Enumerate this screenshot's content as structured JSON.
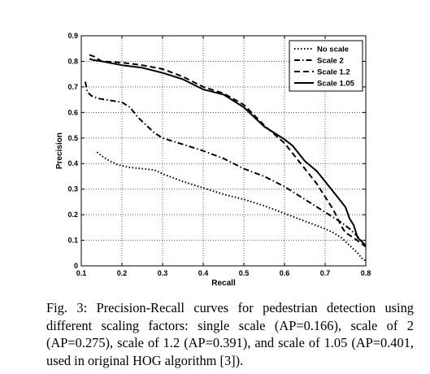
{
  "chart_data": {
    "type": "line",
    "title": "",
    "xlabel": "Recall",
    "ylabel": "Precision",
    "xlim": [
      0.1,
      0.8
    ],
    "ylim": [
      0,
      0.9
    ],
    "xticks": [
      0.1,
      0.2,
      0.3,
      0.4,
      0.5,
      0.6,
      0.7,
      0.8
    ],
    "yticks": [
      0,
      0.1,
      0.2,
      0.3,
      0.4,
      0.5,
      0.6,
      0.7,
      0.8,
      0.9
    ],
    "xtick_labels": [
      "0.1",
      "0.2",
      "0.3",
      "0.4",
      "0.5",
      "0.6",
      "0.7",
      "0.8"
    ],
    "ytick_labels": [
      "0",
      "0.1",
      "0.2",
      "0.3",
      "0.4",
      "0.5",
      "0.6",
      "0.7",
      "0.8",
      "0.9"
    ],
    "grid": true,
    "legend_position": "top-right",
    "series": [
      {
        "name": "No scale",
        "dash": "dotted",
        "points": [
          [
            0.139,
            0.445
          ],
          [
            0.15,
            0.43
          ],
          [
            0.17,
            0.41
          ],
          [
            0.19,
            0.395
          ],
          [
            0.22,
            0.385
          ],
          [
            0.25,
            0.38
          ],
          [
            0.28,
            0.375
          ],
          [
            0.3,
            0.36
          ],
          [
            0.35,
            0.33
          ],
          [
            0.4,
            0.305
          ],
          [
            0.45,
            0.28
          ],
          [
            0.5,
            0.26
          ],
          [
            0.55,
            0.235
          ],
          [
            0.6,
            0.205
          ],
          [
            0.65,
            0.175
          ],
          [
            0.7,
            0.145
          ],
          [
            0.72,
            0.13
          ],
          [
            0.74,
            0.11
          ],
          [
            0.76,
            0.08
          ],
          [
            0.78,
            0.05
          ],
          [
            0.79,
            0.03
          ],
          [
            0.8,
            0.02
          ]
        ]
      },
      {
        "name": "Scale 2",
        "dash": "dashdot",
        "points": [
          [
            0.11,
            0.72
          ],
          [
            0.115,
            0.68
          ],
          [
            0.125,
            0.665
          ],
          [
            0.14,
            0.655
          ],
          [
            0.16,
            0.65
          ],
          [
            0.18,
            0.645
          ],
          [
            0.2,
            0.64
          ],
          [
            0.22,
            0.62
          ],
          [
            0.24,
            0.58
          ],
          [
            0.26,
            0.55
          ],
          [
            0.28,
            0.52
          ],
          [
            0.3,
            0.5
          ],
          [
            0.35,
            0.475
          ],
          [
            0.4,
            0.45
          ],
          [
            0.45,
            0.42
          ],
          [
            0.5,
            0.38
          ],
          [
            0.55,
            0.35
          ],
          [
            0.6,
            0.31
          ],
          [
            0.65,
            0.26
          ],
          [
            0.7,
            0.21
          ],
          [
            0.72,
            0.19
          ],
          [
            0.74,
            0.17
          ],
          [
            0.76,
            0.145
          ],
          [
            0.78,
            0.115
          ],
          [
            0.8,
            0.075
          ]
        ]
      },
      {
        "name": "Scale 1.2",
        "dash": "dashed",
        "points": [
          [
            0.12,
            0.825
          ],
          [
            0.13,
            0.82
          ],
          [
            0.15,
            0.8
          ],
          [
            0.2,
            0.795
          ],
          [
            0.25,
            0.785
          ],
          [
            0.3,
            0.77
          ],
          [
            0.35,
            0.74
          ],
          [
            0.4,
            0.7
          ],
          [
            0.45,
            0.675
          ],
          [
            0.5,
            0.63
          ],
          [
            0.55,
            0.55
          ],
          [
            0.6,
            0.48
          ],
          [
            0.62,
            0.44
          ],
          [
            0.65,
            0.38
          ],
          [
            0.68,
            0.32
          ],
          [
            0.7,
            0.27
          ],
          [
            0.72,
            0.22
          ],
          [
            0.74,
            0.155
          ],
          [
            0.75,
            0.13
          ],
          [
            0.77,
            0.11
          ],
          [
            0.8,
            0.075
          ]
        ]
      },
      {
        "name": "Scale 1.05",
        "dash": "solid",
        "points": [
          [
            0.12,
            0.81
          ],
          [
            0.13,
            0.805
          ],
          [
            0.15,
            0.8
          ],
          [
            0.2,
            0.785
          ],
          [
            0.25,
            0.775
          ],
          [
            0.3,
            0.755
          ],
          [
            0.35,
            0.73
          ],
          [
            0.4,
            0.69
          ],
          [
            0.45,
            0.67
          ],
          [
            0.5,
            0.62
          ],
          [
            0.55,
            0.545
          ],
          [
            0.6,
            0.495
          ],
          [
            0.62,
            0.47
          ],
          [
            0.65,
            0.41
          ],
          [
            0.68,
            0.37
          ],
          [
            0.7,
            0.33
          ],
          [
            0.72,
            0.29
          ],
          [
            0.74,
            0.25
          ],
          [
            0.75,
            0.23
          ],
          [
            0.76,
            0.185
          ],
          [
            0.77,
            0.16
          ],
          [
            0.78,
            0.11
          ],
          [
            0.8,
            0.08
          ]
        ]
      }
    ]
  },
  "caption": "Fig. 3: Precision-Recall curves for pedestrian detection using different scaling factors: single scale (AP=0.166), scale of 2 (AP=0.275), scale of 1.2 (AP=0.391), and scale of 1.05 (AP=0.401, used in original HOG algorithm [3])."
}
